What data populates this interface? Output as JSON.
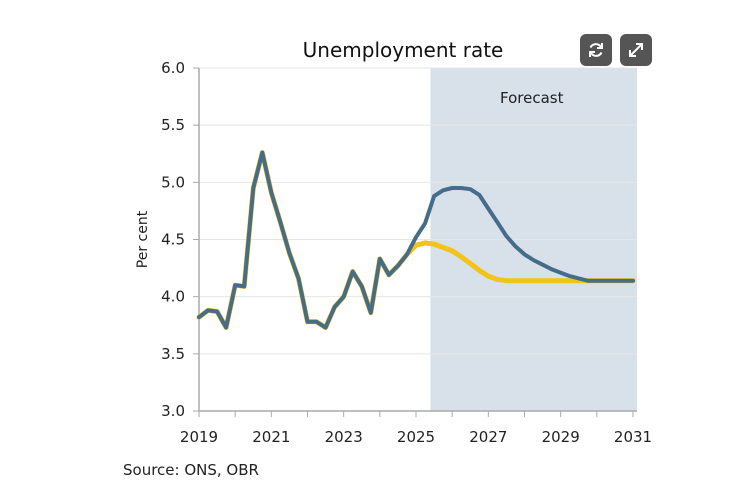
{
  "buttons": {
    "refresh": "refresh-icon",
    "expand": "expand-icon"
  },
  "source": "Source: ONS, OBR",
  "colors": {
    "series_blue": "#456c88",
    "series_yellow": "#f2c418",
    "forecast_shade": "#d8e1e9",
    "button": "#555555"
  },
  "chart_data": {
    "type": "line",
    "title": "Unemployment rate",
    "xlabel": "",
    "ylabel": "Per cent",
    "ylim": [
      3.0,
      6.0
    ],
    "xlim": [
      2019,
      2031
    ],
    "yticks": [
      "3.0",
      "3.5",
      "4.0",
      "4.5",
      "5.0",
      "5.5",
      "6.0"
    ],
    "xticks": [
      "2019",
      "2021",
      "2023",
      "2025",
      "2027",
      "2029",
      "2031"
    ],
    "grid": "horizontal",
    "annotation": "Forecast",
    "forecast_start": 2025.4,
    "x_start": 2019.0,
    "x_step": 0.25,
    "series": [
      {
        "color": "#f2c418",
        "values": [
          3.82,
          3.88,
          3.87,
          3.73,
          4.1,
          4.09,
          4.95,
          5.26,
          4.91,
          4.65,
          4.38,
          4.16,
          3.78,
          3.78,
          3.73,
          3.91,
          4.0,
          4.22,
          4.09,
          3.86,
          4.33,
          4.19,
          4.27,
          4.37,
          4.45,
          4.47,
          4.46,
          4.43,
          4.4,
          4.35,
          4.29,
          4.23,
          4.18,
          4.15,
          4.14,
          4.14,
          4.14,
          4.14,
          4.14,
          4.14,
          4.14,
          4.14,
          4.14,
          4.14,
          4.14,
          4.14,
          4.14,
          4.14,
          4.14
        ]
      },
      {
        "color": "#456c88",
        "values": [
          3.82,
          3.88,
          3.87,
          3.73,
          4.1,
          4.09,
          4.95,
          5.26,
          4.91,
          4.65,
          4.38,
          4.16,
          3.78,
          3.78,
          3.73,
          3.91,
          4.0,
          4.22,
          4.09,
          3.86,
          4.33,
          4.19,
          4.27,
          4.37,
          4.52,
          4.64,
          4.88,
          4.93,
          4.95,
          4.95,
          4.94,
          4.89,
          4.77,
          4.65,
          4.53,
          4.44,
          4.37,
          4.32,
          4.28,
          4.24,
          4.21,
          4.18,
          4.16,
          4.14,
          4.14,
          4.14,
          4.14,
          4.14,
          4.14
        ]
      }
    ]
  }
}
